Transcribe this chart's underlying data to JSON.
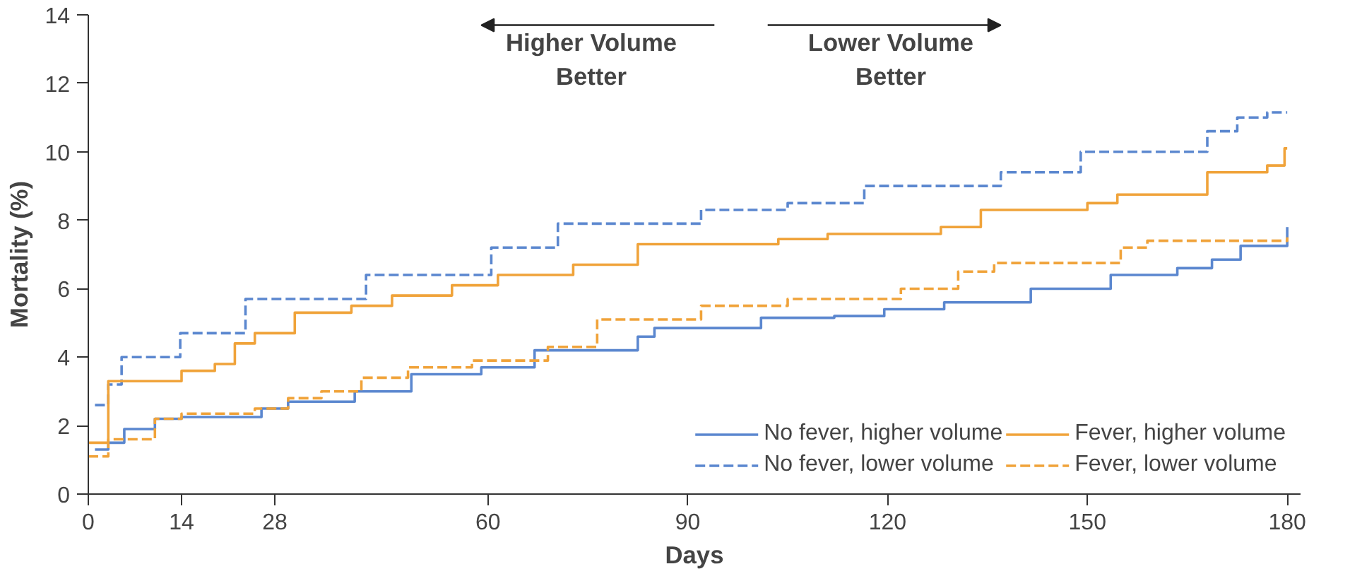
{
  "chart_data": {
    "type": "step",
    "xlabel": "Days",
    "ylabel": "Mortality (%)",
    "xlim": [
      0,
      182
    ],
    "ylim": [
      0,
      14
    ],
    "xticks": [
      0,
      14,
      28,
      60,
      90,
      120,
      150,
      180
    ],
    "yticks": [
      0,
      2,
      4,
      6,
      8,
      10,
      12,
      14
    ],
    "grid": false,
    "legend": "bottom right",
    "annotations": [
      "Higher Volume\nBetter",
      "Lower Volume\nBetter"
    ],
    "series": [
      {
        "name": "No fever, higher volume",
        "color": "#5b87cf",
        "line_style": "solid",
        "x": [
          1,
          3,
          5.4,
          10,
          14,
          26,
          30,
          40,
          48.5,
          59,
          67,
          82.5,
          85,
          101,
          112,
          119.5,
          128.5,
          141.5,
          153.5,
          163.5,
          168.7,
          173,
          180
        ],
        "values": [
          1.3,
          1.5,
          1.9,
          2.2,
          2.25,
          2.5,
          2.7,
          3.0,
          3.5,
          3.7,
          4.2,
          4.6,
          4.85,
          5.15,
          5.2,
          5.4,
          5.6,
          6.0,
          6.4,
          6.6,
          6.85,
          7.25,
          7.8
        ]
      },
      {
        "name": "No fever, lower volume",
        "color": "#5b87cf",
        "line_style": "dashed",
        "x": [
          1,
          3,
          5,
          13.8,
          23.6,
          41.7,
          60.5,
          70.5,
          92,
          103,
          105,
          116.5,
          137,
          149,
          168,
          172.5,
          177,
          180
        ],
        "values": [
          2.6,
          3.2,
          4.0,
          4.7,
          5.7,
          6.4,
          7.2,
          7.9,
          8.3,
          8.3,
          8.5,
          9.0,
          9.4,
          10.0,
          10.6,
          11.0,
          11.15,
          11.15
        ]
      },
      {
        "name": "Fever, higher volume",
        "color": "#f0a33a",
        "line_style": "solid",
        "x": [
          0,
          3,
          14,
          19,
          22,
          25,
          31,
          39.5,
          45.6,
          54.6,
          61.5,
          72.8,
          82.5,
          103.6,
          111,
          128,
          134,
          150,
          154.5,
          168,
          177,
          179.6,
          180
        ],
        "values": [
          1.5,
          3.3,
          3.6,
          3.8,
          4.4,
          4.7,
          5.3,
          5.5,
          5.8,
          6.1,
          6.4,
          6.7,
          7.3,
          7.45,
          7.6,
          7.8,
          8.3,
          8.5,
          8.75,
          9.4,
          9.6,
          10.1,
          10.1
        ]
      },
      {
        "name": "Fever, lower volume",
        "color": "#f0a33a",
        "line_style": "dashed",
        "x": [
          0,
          3,
          10,
          14,
          25,
          30,
          35,
          41,
          48,
          57.6,
          69,
          76.4,
          92,
          105,
          122,
          130.6,
          136,
          155,
          159,
          180
        ],
        "values": [
          1.1,
          1.6,
          2.2,
          2.35,
          2.5,
          2.8,
          3.0,
          3.4,
          3.7,
          3.9,
          4.3,
          5.1,
          5.5,
          5.7,
          6.0,
          6.5,
          6.75,
          7.2,
          7.4,
          7.5
        ]
      }
    ]
  }
}
